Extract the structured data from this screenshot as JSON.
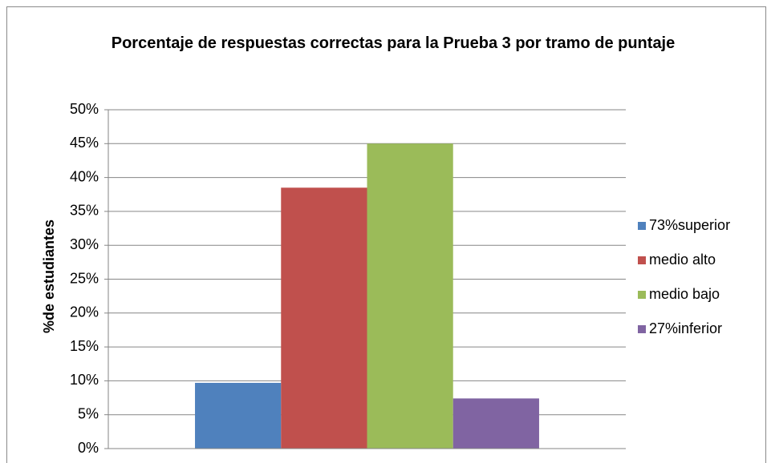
{
  "chart_data": {
    "type": "bar",
    "title": "Porcentaje de respuestas correctas para la Prueba 3 por tramo de puntaje",
    "y_label": "%de estudiantes",
    "categories": [
      null
    ],
    "series": [
      {
        "name": "73%superior",
        "color": "#4f81bd",
        "values": [
          9.7
        ]
      },
      {
        "name": "medio alto",
        "color": "#c0504d",
        "values": [
          38.5
        ]
      },
      {
        "name": "medio bajo",
        "color": "#9bbb59",
        "values": [
          45
        ]
      },
      {
        "name": "27%inferior",
        "color": "#8064a2",
        "values": [
          7.4
        ]
      }
    ],
    "ylim": [
      0,
      50
    ],
    "yticks": [
      {
        "value": 0,
        "label": "0%"
      },
      {
        "value": 5,
        "label": "5%"
      },
      {
        "value": 10,
        "label": "10%"
      },
      {
        "value": 15,
        "label": "15%"
      },
      {
        "value": 20,
        "label": "20%"
      },
      {
        "value": 25,
        "label": "25%"
      },
      {
        "value": 30,
        "label": "30%"
      },
      {
        "value": 35,
        "label": "35%"
      },
      {
        "value": 40,
        "label": "40%"
      },
      {
        "value": 45,
        "label": "45%"
      },
      {
        "value": 50,
        "label": "50%"
      }
    ],
    "grid": true,
    "legend": "right"
  }
}
